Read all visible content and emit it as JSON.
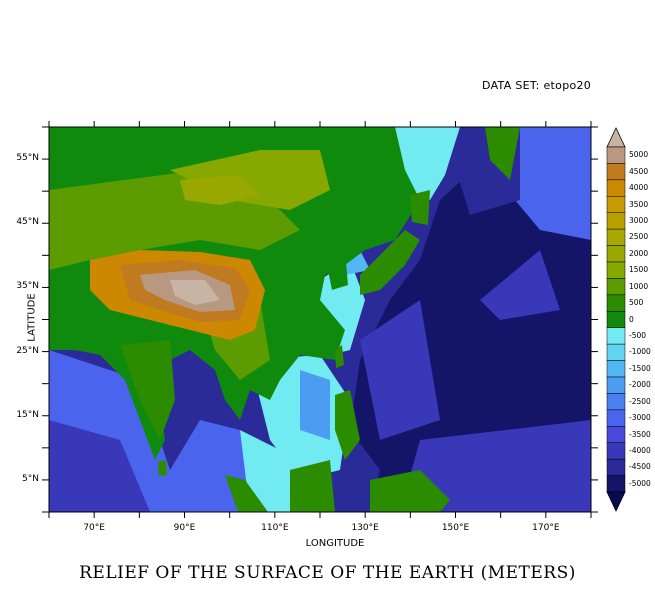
{
  "header": {
    "dataset_label": "DATA SET: etopo20"
  },
  "footer": {
    "title": "RELIEF OF THE SURFACE OF THE EARTH (METERS)"
  },
  "axes": {
    "xlabel": "LONGITUDE",
    "ylabel": "LATITUDE",
    "x_ticks": [
      "70°E",
      "90°E",
      "110°E",
      "130°E",
      "150°E",
      "170°E"
    ],
    "y_ticks": [
      "55°N",
      "45°N",
      "35°N",
      "25°N",
      "15°N",
      "5°N"
    ],
    "lon_range": [
      60,
      180
    ],
    "lat_range": [
      0,
      60
    ]
  },
  "colorbar": {
    "labels": [
      "5000",
      "4500",
      "4000",
      "3500",
      "3000",
      "2500",
      "2000",
      "1500",
      "1000",
      "500",
      "0",
      "-500",
      "-1000",
      "-1500",
      "-2000",
      "-2500",
      "-3000",
      "-3500",
      "-4000",
      "-4500",
      "-5000"
    ],
    "colors": [
      "#b89880",
      "#c07a20",
      "#cc8800",
      "#c89a00",
      "#b8a000",
      "#a8a800",
      "#98a800",
      "#86a800",
      "#5c9c00",
      "#2c8c00",
      "#0f8a0c",
      "#72eaf2",
      "#62d4f4",
      "#52b8f4",
      "#4c9cf2",
      "#4a80f0",
      "#4a64ee",
      "#4848da",
      "#3838b8",
      "#2a2a98",
      "#141468"
    ]
  }
}
